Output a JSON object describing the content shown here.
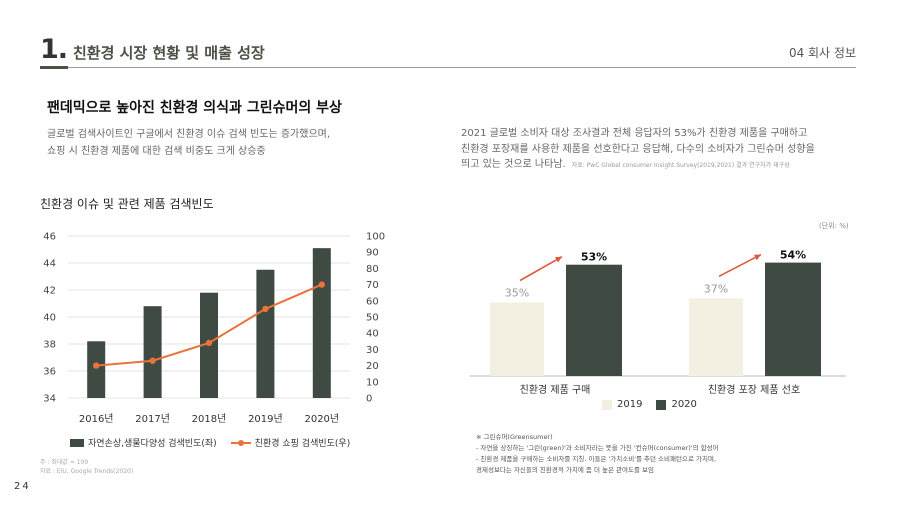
{
  "header": {
    "number": "1.",
    "title": "친환경 시장 현황 및 매출 성장",
    "section": "04 회사 정보"
  },
  "lead": {
    "title": "팬데믹으로 높아진 친환경 의식과 그린슈머의 부상",
    "desc": [
      "글로벌 검색사이트인 구글에서 친환경 이슈 검색 빈도는 증가했으며,",
      "쇼핑 시 친환경 제품에 대한 검색 비중도 크게 상승중"
    ]
  },
  "survey": {
    "lines": [
      "2021 글로벌 소비자 대상 조사결과 전체 응답자의 53%가 친환경 제품을 구매하고",
      "친환경 포장재를 사용한 제품을 선호한다고 응답해, 다수의 소비자가 그린슈머 성향을",
      "띄고 있는 것으로 나타남."
    ],
    "source": "자료: PwC Global consumer Insight Survey(2019,2021) 결과 연구자가 재구성"
  },
  "chart1_title": "친환경 이슈 및 관련 제품 검색빈도",
  "chart1_legend": {
    "bar": "자연손상,생물다양성 검색빈도(좌)",
    "line": "친환경 쇼핑 검색빈도(우)"
  },
  "chart1_source": {
    "note": "주 : 최대값 = 100",
    "source": "자료 : EIU, Google Trends(2020)"
  },
  "page_number": "24",
  "chart2_unit": "(단위: %)",
  "chart2_legend": [
    "2019",
    "2020"
  ],
  "chart2_note": {
    "title": "※ 그린슈머(Greensumer)",
    "lines": [
      "- 자연을 상징하는 '그린(green)'과 소비자라는 뜻을 가진 '컨슈머(consumer)'의 합성어",
      "- 친환경 제품을 구매하는 소비자를 지칭. 이들은 '가치소비'를 추던 소비패턴으로 가치며,",
      "  경제성보다는 자신들의 친환경적 가치에 좀 더 높은 관여도를 보임"
    ]
  },
  "chart_data": [
    {
      "type": "bar",
      "title": "친환경 이슈 및 관련 제품 검색빈도",
      "categories": [
        "2016년",
        "2017년",
        "2018년",
        "2019년",
        "2020년"
      ],
      "series": [
        {
          "name": "자연손상,생물다양성 검색빈도(좌)",
          "kind": "bar",
          "axis": "left",
          "values": [
            38.2,
            40.8,
            41.8,
            43.5,
            45.1
          ],
          "color": "#3e4a42"
        },
        {
          "name": "친환경 쇼핑 검색빈도(우)",
          "kind": "line",
          "axis": "right",
          "values": [
            20,
            23,
            34,
            55,
            70
          ],
          "color": "#e8743b"
        }
      ],
      "ylim_left": [
        34,
        46
      ],
      "yticks_left": [
        34,
        36,
        38,
        40,
        42,
        44,
        46
      ],
      "ylim_right": [
        0,
        100
      ],
      "yticks_right": [
        0,
        10,
        20,
        30,
        40,
        50,
        60,
        70,
        80,
        90,
        100
      ],
      "grid": true,
      "legend": "bottom"
    },
    {
      "type": "bar",
      "categories": [
        "친환경 제품 구매",
        "친환경 포장 제품 선호"
      ],
      "series": [
        {
          "name": "2019",
          "values": [
            35,
            37
          ],
          "labels": [
            "35%",
            "37%"
          ],
          "color": "#f3efe1",
          "label_color": "#999999"
        },
        {
          "name": "2020",
          "values": [
            53,
            54
          ],
          "labels": [
            "53%",
            "54%"
          ],
          "color": "#3e4a42",
          "label_color": "#111111"
        }
      ],
      "arrow_color": "#e0593a",
      "unit": "%",
      "legend": "bottom"
    }
  ]
}
